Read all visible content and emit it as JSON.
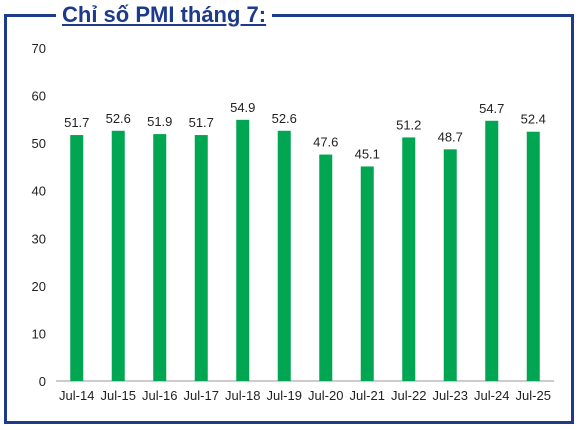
{
  "title": "Chỉ số PMI tháng 7:",
  "colors": {
    "bar": "#00a651",
    "frame": "#1e3a8a",
    "title": "#1e3a8a"
  },
  "chart_data": {
    "type": "bar",
    "title": "Chỉ số PMI tháng 7:",
    "categories": [
      "Jul-14",
      "Jul-15",
      "Jul-16",
      "Jul-17",
      "Jul-18",
      "Jul-19",
      "Jul-20",
      "Jul-21",
      "Jul-22",
      "Jul-23",
      "Jul-24",
      "Jul-25"
    ],
    "values": [
      51.7,
      52.6,
      51.9,
      51.7,
      54.9,
      52.6,
      47.6,
      45.1,
      51.2,
      48.7,
      54.7,
      52.4
    ],
    "data_labels": [
      "51.7",
      "52.6",
      "51.9",
      "51.7",
      "54.9",
      "52.6",
      "47.6",
      "45.1",
      "51.2",
      "48.7",
      "54.7",
      "52.4"
    ],
    "ylim": [
      0,
      70
    ],
    "yticks": [
      0,
      10,
      20,
      30,
      40,
      50,
      60,
      70
    ],
    "ytick_labels": [
      "0",
      "10",
      "20",
      "30",
      "40",
      "50",
      "60",
      "70"
    ],
    "grid": false,
    "xlabel": "",
    "ylabel": ""
  }
}
